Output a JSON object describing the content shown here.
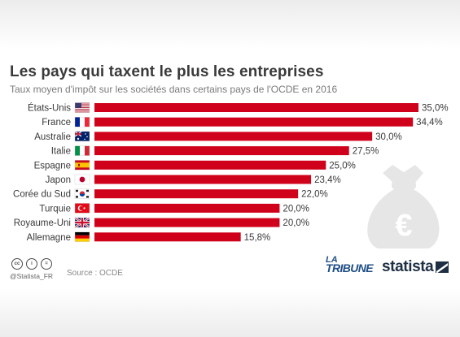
{
  "title": "Les pays qui taxent le plus les entreprises",
  "subtitle": "Taux moyen d'impôt sur les sociétés dans certains pays de l'OCDE en 2016",
  "chart_data": {
    "type": "bar",
    "orientation": "horizontal",
    "categories": [
      "États-Unis",
      "France",
      "Australie",
      "Italie",
      "Espagne",
      "Japon",
      "Corée du Sud",
      "Turquie",
      "Royaume-Uni",
      "Allemagne"
    ],
    "values": [
      35.0,
      34.4,
      30.0,
      27.5,
      25.0,
      23.4,
      22.0,
      20.0,
      20.0,
      15.8
    ],
    "value_labels": [
      "35,0%",
      "34,4%",
      "30,0%",
      "27,5%",
      "25,0%",
      "23,4%",
      "22,0%",
      "20,0%",
      "20,0%",
      "15,8%"
    ],
    "flags": [
      "us-flag-icon",
      "fr-flag-icon",
      "au-flag-icon",
      "it-flag-icon",
      "es-flag-icon",
      "jp-flag-icon",
      "kr-flag-icon",
      "tr-flag-icon",
      "gb-flag-icon",
      "de-flag-icon"
    ],
    "xlim": [
      0,
      35
    ],
    "bar_color": "#d0021b",
    "grid": false
  },
  "footer": {
    "handle": "@Statista_FR",
    "source": "Source : OCDE",
    "brand_latribune_line1": "LA",
    "brand_latribune_line2": "TRIBUNE",
    "brand_statista": "statista",
    "license_icons": [
      "cc-icon",
      "by-icon",
      "nd-icon"
    ]
  },
  "colors": {
    "title": "#3a3a3a",
    "subtitle": "#7a7a7a",
    "brand_blue": "#1f4e86",
    "statista_dark": "#1e2f44",
    "moneybag": "#e6e6e6"
  }
}
